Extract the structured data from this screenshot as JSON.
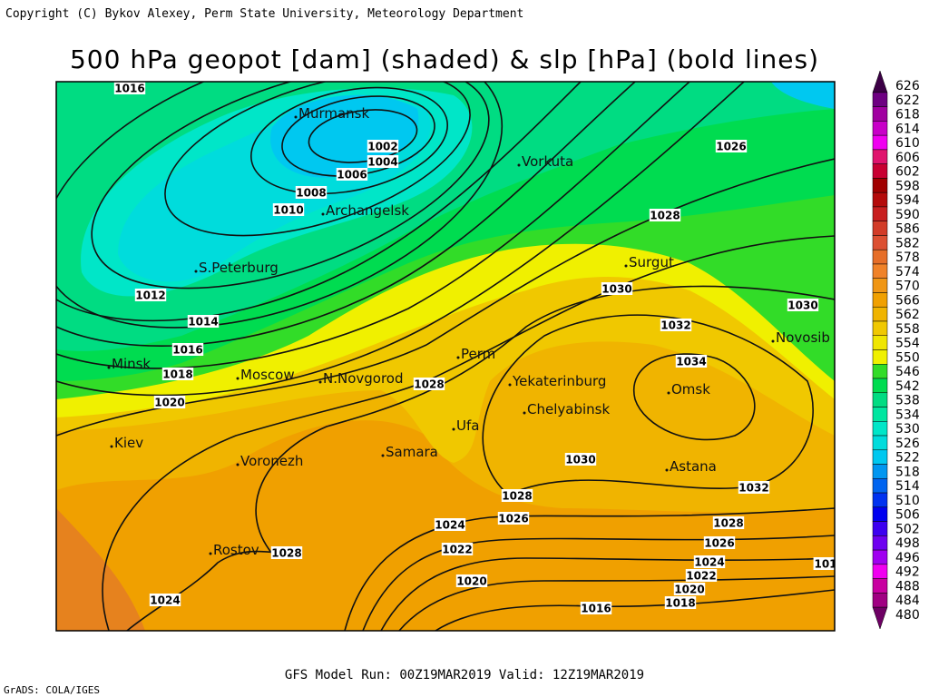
{
  "header": {
    "copyright": "Copyright (C) Bykov Alexey, Perm State University, Meteorology Department",
    "title": "500 hPa geopot [dam] (shaded) & slp [hPa] (bold lines)"
  },
  "colorbar": {
    "levels": [
      626,
      622,
      618,
      614,
      610,
      606,
      602,
      598,
      594,
      590,
      586,
      582,
      578,
      574,
      570,
      566,
      562,
      558,
      554,
      550,
      546,
      542,
      538,
      534,
      530,
      526,
      522,
      518,
      514,
      510,
      506,
      502,
      498,
      496,
      492,
      488,
      484,
      480
    ],
    "colors": [
      "#3c0046",
      "#6e0082",
      "#a000a0",
      "#c800c8",
      "#f000f0",
      "#e0146e",
      "#c80032",
      "#a00000",
      "#b40a0a",
      "#c81e1e",
      "#d23c28",
      "#dc5032",
      "#e66e28",
      "#f08228",
      "#f09614",
      "#f0a000",
      "#f0b400",
      "#f0c800",
      "#f0e600",
      "#f0f000",
      "#32dc28",
      "#00dc50",
      "#00dc82",
      "#00e6a0",
      "#00e6c8",
      "#00dcdc",
      "#00c8f0",
      "#0096f0",
      "#0064f0",
      "#0032f0",
      "#0000f0",
      "#3c00f0",
      "#6e00f0",
      "#a000f0",
      "#f000f0",
      "#c800a0",
      "#a00082",
      "#6e0064"
    ]
  },
  "cities": [
    "Murmansk",
    "Vorkuta",
    "Archangelsk",
    "Surgut",
    "S.Peterburg",
    "Novosib",
    "Minsk",
    "Moscow",
    "N.Novgorod",
    "Perm",
    "Yekaterinburg",
    "Omsk",
    "Chelyabinsk",
    "Ufa",
    "Kiev",
    "Samara",
    "Voronezh",
    "Astana",
    "Rostov"
  ],
  "isobars": {
    "labels": [
      "1016",
      "1002",
      "1004",
      "1006",
      "1008",
      "1010",
      "1026",
      "1028",
      "1012",
      "1014",
      "1016",
      "1018",
      "1020",
      "1030",
      "1032",
      "1030",
      "1034",
      "1028",
      "1030",
      "1032",
      "1028",
      "1026",
      "1024",
      "1028",
      "1026",
      "1024",
      "1022",
      "1022",
      "1020",
      "1020",
      "1018",
      "1016",
      "1024",
      "1028",
      "101"
    ]
  },
  "footer": {
    "run": "GFS Model Run: 00Z19MAR2019 Valid: 12Z19MAR2019",
    "software": "GrADS: COLA/IGES"
  }
}
